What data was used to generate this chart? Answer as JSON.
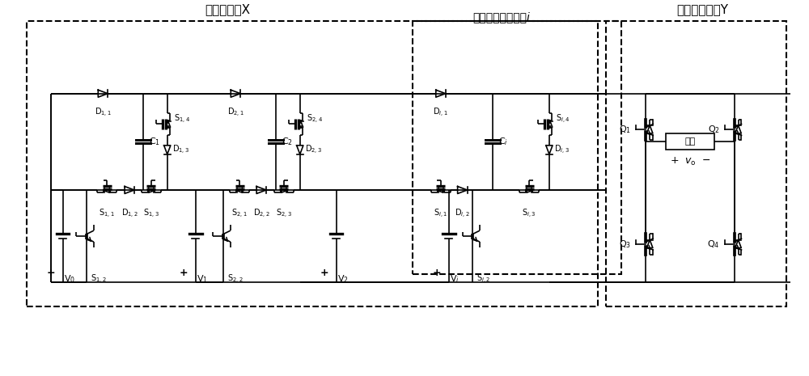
{
  "title_left": "前级变换器X",
  "title_right": "后级全桥单元Y",
  "title_mid": "开关电容基本模块i",
  "load_label": "负载",
  "vo_label": "+ vₒ  -",
  "bg_color": "#ffffff"
}
